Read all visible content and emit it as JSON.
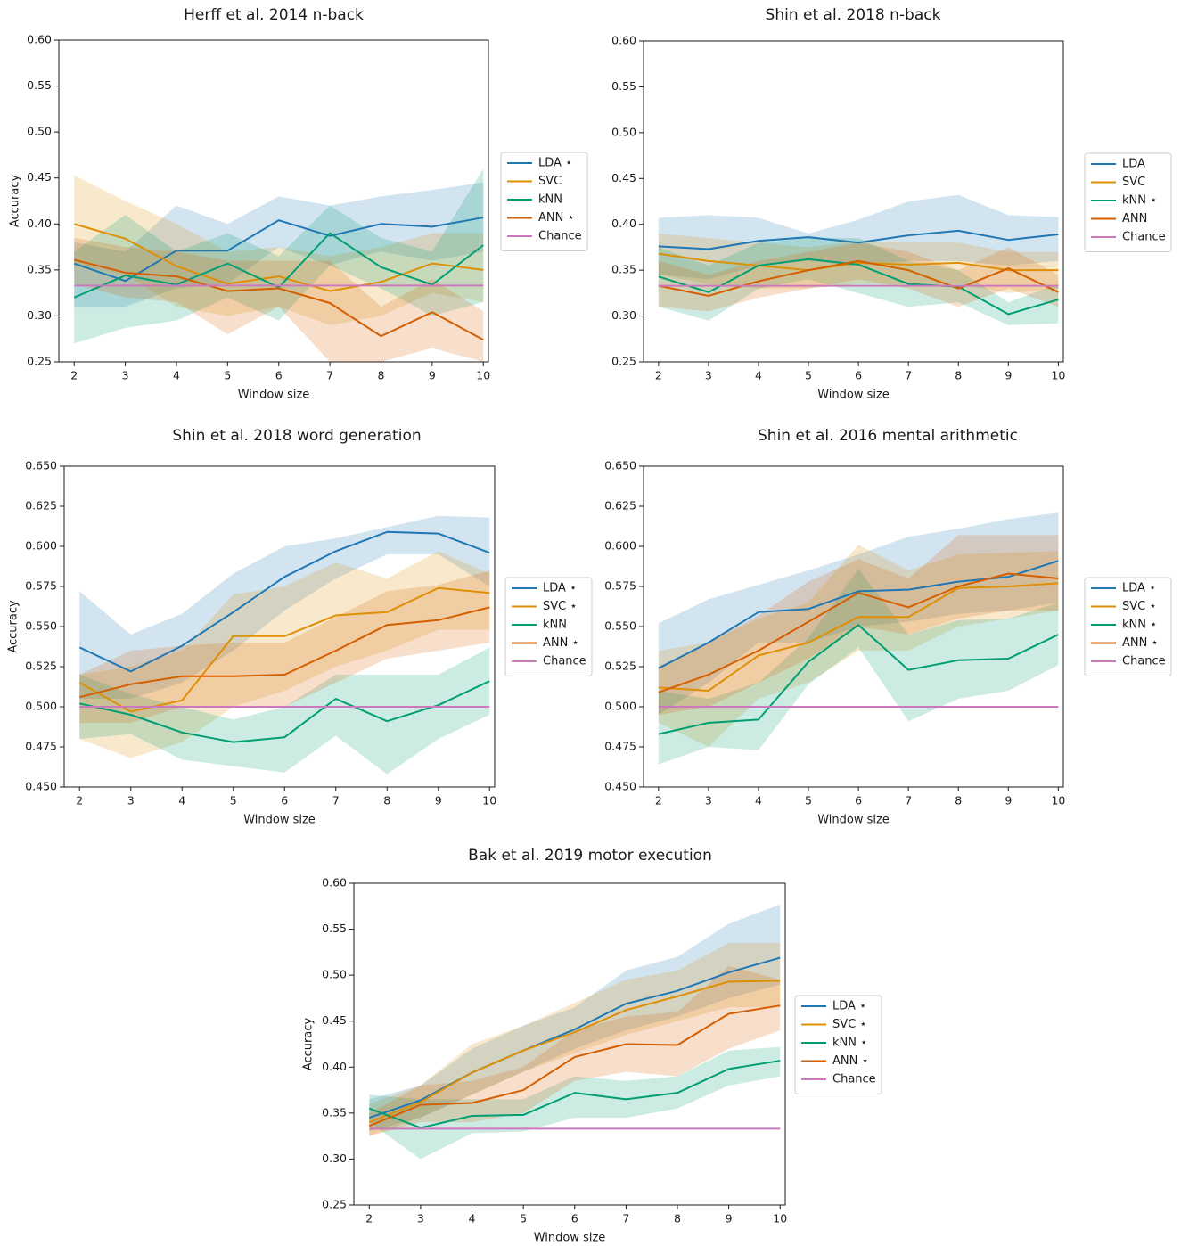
{
  "colors": {
    "LDA": "#1f77b4",
    "SVC": "#de8f05",
    "kNN": "#029e73",
    "ANN": "#d55e00",
    "Chance": "#cc78bc"
  },
  "chart_data": [
    {
      "type": "line",
      "title": "Herff et al. 2014 n-back",
      "xlabel": "Window size",
      "ylabel": "Accuracy",
      "x": [
        2,
        3,
        4,
        5,
        6,
        7,
        8,
        9,
        10
      ],
      "xticks": [
        "2",
        "3",
        "4",
        "5",
        "6",
        "7",
        "8",
        "9",
        "10"
      ],
      "ylim": [
        0.25,
        0.6
      ],
      "yticks": [
        "0.25",
        "0.30",
        "0.35",
        "0.40",
        "0.45",
        "0.50",
        "0.55",
        "0.60"
      ],
      "legend_position": "right",
      "series": [
        {
          "name": "LDA",
          "legend_label": "LDA  ⋆",
          "values": [
            0.357,
            0.338,
            0.371,
            0.371,
            0.404,
            0.387,
            0.4,
            0.397,
            0.407
          ],
          "lower": [
            0.31,
            0.31,
            0.33,
            0.335,
            0.375,
            0.355,
            0.37,
            0.36,
            0.37
          ],
          "upper": [
            0.38,
            0.37,
            0.42,
            0.4,
            0.43,
            0.42,
            0.43,
            0.437,
            0.445
          ]
        },
        {
          "name": "SVC",
          "legend_label": "SVC",
          "values": [
            0.4,
            0.384,
            0.354,
            0.335,
            0.343,
            0.327,
            0.337,
            0.357,
            0.35
          ],
          "lower": [
            0.355,
            0.345,
            0.31,
            0.3,
            0.31,
            0.29,
            0.3,
            0.325,
            0.315
          ],
          "upper": [
            0.453,
            0.425,
            0.4,
            0.37,
            0.375,
            0.365,
            0.375,
            0.39,
            0.39
          ]
        },
        {
          "name": "kNN",
          "legend_label": "kNN",
          "values": [
            0.32,
            0.344,
            0.334,
            0.357,
            0.331,
            0.39,
            0.353,
            0.334,
            0.377
          ],
          "lower": [
            0.27,
            0.287,
            0.295,
            0.32,
            0.295,
            0.355,
            0.33,
            0.3,
            0.315
          ],
          "upper": [
            0.37,
            0.41,
            0.37,
            0.39,
            0.365,
            0.42,
            0.385,
            0.37,
            0.46
          ]
        },
        {
          "name": "ANN",
          "legend_label": "ANN  ⋆",
          "values": [
            0.361,
            0.347,
            0.343,
            0.327,
            0.33,
            0.314,
            0.278,
            0.304,
            0.274
          ],
          "lower": [
            0.335,
            0.32,
            0.315,
            0.28,
            0.31,
            0.25,
            0.25,
            0.265,
            0.25
          ],
          "upper": [
            0.385,
            0.375,
            0.37,
            0.36,
            0.36,
            0.36,
            0.31,
            0.34,
            0.305
          ]
        },
        {
          "name": "Chance",
          "legend_label": "Chance",
          "values": [
            0.333,
            0.333,
            0.333,
            0.333,
            0.333,
            0.333,
            0.333,
            0.333,
            0.333
          ]
        }
      ]
    },
    {
      "type": "line",
      "title": "Shin et al. 2018 n-back",
      "xlabel": "Window size",
      "ylabel": "",
      "x": [
        2,
        3,
        4,
        5,
        6,
        7,
        8,
        9,
        10
      ],
      "xticks": [
        "2",
        "3",
        "4",
        "5",
        "6",
        "7",
        "8",
        "9",
        "10"
      ],
      "ylim": [
        0.25,
        0.6
      ],
      "yticks": [
        "0.25",
        "0.30",
        "0.35",
        "0.40",
        "0.45",
        "0.50",
        "0.55",
        "0.60"
      ],
      "legend_position": "right",
      "series": [
        {
          "name": "LDA",
          "legend_label": "LDA",
          "values": [
            0.376,
            0.373,
            0.382,
            0.386,
            0.38,
            0.388,
            0.393,
            0.383,
            0.389
          ],
          "lower": [
            0.345,
            0.34,
            0.355,
            0.36,
            0.355,
            0.36,
            0.36,
            0.355,
            0.36
          ],
          "upper": [
            0.407,
            0.41,
            0.407,
            0.39,
            0.405,
            0.425,
            0.432,
            0.41,
            0.408
          ]
        },
        {
          "name": "SVC",
          "legend_label": "SVC",
          "values": [
            0.368,
            0.36,
            0.355,
            0.35,
            0.358,
            0.356,
            0.358,
            0.35,
            0.35
          ],
          "lower": [
            0.345,
            0.335,
            0.33,
            0.33,
            0.335,
            0.335,
            0.335,
            0.325,
            0.33
          ],
          "upper": [
            0.39,
            0.385,
            0.38,
            0.375,
            0.382,
            0.38,
            0.38,
            0.37,
            0.37
          ]
        },
        {
          "name": "kNN",
          "legend_label": "kNN  ⋆",
          "values": [
            0.343,
            0.326,
            0.355,
            0.362,
            0.356,
            0.335,
            0.332,
            0.302,
            0.318
          ],
          "lower": [
            0.31,
            0.295,
            0.33,
            0.34,
            0.325,
            0.31,
            0.315,
            0.29,
            0.292
          ],
          "upper": [
            0.375,
            0.355,
            0.38,
            0.385,
            0.385,
            0.36,
            0.35,
            0.315,
            0.335
          ]
        },
        {
          "name": "ANN",
          "legend_label": "ANN",
          "values": [
            0.333,
            0.322,
            0.338,
            0.35,
            0.36,
            0.35,
            0.33,
            0.352,
            0.326
          ],
          "lower": [
            0.31,
            0.305,
            0.32,
            0.33,
            0.34,
            0.33,
            0.31,
            0.33,
            0.31
          ],
          "upper": [
            0.36,
            0.345,
            0.36,
            0.37,
            0.38,
            0.37,
            0.35,
            0.375,
            0.345
          ]
        },
        {
          "name": "Chance",
          "legend_label": "Chance",
          "values": [
            0.333,
            0.333,
            0.333,
            0.333,
            0.333,
            0.333,
            0.333,
            0.333,
            0.333
          ]
        }
      ]
    },
    {
      "type": "line",
      "title": "Shin et al. 2018 word generation",
      "xlabel": "Window size",
      "ylabel": "Accuracy",
      "x": [
        2,
        3,
        4,
        5,
        6,
        7,
        8,
        9,
        10
      ],
      "xticks": [
        "2",
        "3",
        "4",
        "5",
        "6",
        "7",
        "8",
        "9",
        "10"
      ],
      "ylim": [
        0.45,
        0.65
      ],
      "yticks": [
        "0.450",
        "0.475",
        "0.500",
        "0.525",
        "0.550",
        "0.575",
        "0.600",
        "0.625",
        "0.650"
      ],
      "legend_position": "right",
      "series": [
        {
          "name": "LDA",
          "legend_label": "LDA  ⋆",
          "values": [
            0.537,
            0.522,
            0.538,
            0.559,
            0.581,
            0.597,
            0.609,
            0.608,
            0.596
          ],
          "lower": [
            0.505,
            0.505,
            0.515,
            0.535,
            0.56,
            0.58,
            0.595,
            0.595,
            0.575
          ],
          "upper": [
            0.572,
            0.545,
            0.558,
            0.583,
            0.6,
            0.605,
            0.612,
            0.619,
            0.618
          ]
        },
        {
          "name": "SVC",
          "legend_label": "SVC  ⋆",
          "values": [
            0.515,
            0.497,
            0.504,
            0.544,
            0.544,
            0.557,
            0.559,
            0.574,
            0.571
          ],
          "lower": [
            0.48,
            0.468,
            0.478,
            0.5,
            0.51,
            0.525,
            0.535,
            0.548,
            0.548
          ],
          "upper": [
            0.52,
            0.525,
            0.535,
            0.57,
            0.575,
            0.59,
            0.58,
            0.597,
            0.583
          ]
        },
        {
          "name": "kNN",
          "legend_label": "kNN",
          "values": [
            0.502,
            0.495,
            0.484,
            0.478,
            0.481,
            0.505,
            0.491,
            0.501,
            0.516
          ],
          "lower": [
            0.48,
            0.483,
            0.467,
            0.463,
            0.459,
            0.482,
            0.458,
            0.48,
            0.495
          ],
          "upper": [
            0.52,
            0.508,
            0.5,
            0.492,
            0.5,
            0.52,
            0.52,
            0.52,
            0.537
          ]
        },
        {
          "name": "ANN",
          "legend_label": "ANN  ⋆",
          "values": [
            0.506,
            0.514,
            0.519,
            0.519,
            0.52,
            0.535,
            0.551,
            0.554,
            0.562
          ],
          "lower": [
            0.49,
            0.49,
            0.5,
            0.5,
            0.5,
            0.515,
            0.53,
            0.535,
            0.54
          ],
          "upper": [
            0.52,
            0.535,
            0.538,
            0.54,
            0.54,
            0.556,
            0.572,
            0.576,
            0.585
          ]
        },
        {
          "name": "Chance",
          "legend_label": "Chance",
          "values": [
            0.5,
            0.5,
            0.5,
            0.5,
            0.5,
            0.5,
            0.5,
            0.5,
            0.5
          ]
        }
      ]
    },
    {
      "type": "line",
      "title": "Shin et al. 2016 mental arithmetic",
      "xlabel": "Window size",
      "ylabel": "",
      "x": [
        2,
        3,
        4,
        5,
        6,
        7,
        8,
        9,
        10
      ],
      "xticks": [
        "2",
        "3",
        "4",
        "5",
        "6",
        "7",
        "8",
        "9",
        "10"
      ],
      "ylim": [
        0.45,
        0.65
      ],
      "yticks": [
        "0.450",
        "0.475",
        "0.500",
        "0.525",
        "0.550",
        "0.575",
        "0.600",
        "0.625",
        "0.650"
      ],
      "legend_position": "right",
      "series": [
        {
          "name": "LDA",
          "legend_label": "LDA  ⋆",
          "values": [
            0.524,
            0.54,
            0.559,
            0.561,
            0.572,
            0.573,
            0.578,
            0.581,
            0.591
          ],
          "lower": [
            0.495,
            0.515,
            0.54,
            0.54,
            0.55,
            0.553,
            0.558,
            0.56,
            0.565
          ],
          "upper": [
            0.552,
            0.567,
            0.576,
            0.585,
            0.595,
            0.606,
            0.611,
            0.617,
            0.621
          ]
        },
        {
          "name": "SVC",
          "legend_label": "SVC  ⋆",
          "values": [
            0.512,
            0.51,
            0.532,
            0.54,
            0.556,
            0.556,
            0.574,
            0.575,
            0.577
          ],
          "lower": [
            0.49,
            0.475,
            0.505,
            0.515,
            0.535,
            0.535,
            0.55,
            0.555,
            0.56
          ],
          "upper": [
            0.535,
            0.54,
            0.555,
            0.565,
            0.601,
            0.585,
            0.595,
            0.596,
            0.597
          ]
        },
        {
          "name": "kNN",
          "legend_label": "kNN  ⋆",
          "values": [
            0.483,
            0.49,
            0.492,
            0.528,
            0.551,
            0.523,
            0.529,
            0.53,
            0.545
          ],
          "lower": [
            0.464,
            0.475,
            0.473,
            0.514,
            0.537,
            0.491,
            0.505,
            0.51,
            0.526
          ],
          "upper": [
            0.51,
            0.505,
            0.515,
            0.543,
            0.586,
            0.545,
            0.554,
            0.555,
            0.565
          ]
        },
        {
          "name": "ANN",
          "legend_label": "ANN  ⋆",
          "values": [
            0.509,
            0.52,
            0.535,
            0.553,
            0.571,
            0.562,
            0.575,
            0.583,
            0.58
          ],
          "lower": [
            0.495,
            0.5,
            0.515,
            0.53,
            0.55,
            0.545,
            0.555,
            0.56,
            0.56
          ],
          "upper": [
            0.525,
            0.54,
            0.557,
            0.578,
            0.592,
            0.58,
            0.607,
            0.607,
            0.607
          ]
        },
        {
          "name": "Chance",
          "legend_label": "Chance",
          "values": [
            0.5,
            0.5,
            0.5,
            0.5,
            0.5,
            0.5,
            0.5,
            0.5,
            0.5
          ]
        }
      ]
    },
    {
      "type": "line",
      "title": "Bak et al. 2019 motor execution",
      "xlabel": "Window size",
      "ylabel": "Accuracy",
      "x": [
        2,
        3,
        4,
        5,
        6,
        7,
        8,
        9,
        10
      ],
      "xticks": [
        "2",
        "3",
        "4",
        "5",
        "6",
        "7",
        "8",
        "9",
        "10"
      ],
      "ylim": [
        0.25,
        0.6
      ],
      "yticks": [
        "0.25",
        "0.30",
        "0.35",
        "0.40",
        "0.45",
        "0.50",
        "0.55",
        "0.60"
      ],
      "legend_position": "right",
      "series": [
        {
          "name": "LDA",
          "legend_label": "LDA  ⋆",
          "values": [
            0.345,
            0.364,
            0.394,
            0.418,
            0.441,
            0.469,
            0.483,
            0.503,
            0.519
          ],
          "lower": [
            0.33,
            0.345,
            0.37,
            0.395,
            0.42,
            0.44,
            0.455,
            0.475,
            0.49
          ],
          "upper": [
            0.365,
            0.38,
            0.42,
            0.445,
            0.465,
            0.505,
            0.52,
            0.556,
            0.577
          ]
        },
        {
          "name": "SVC",
          "legend_label": "SVC  ⋆",
          "values": [
            0.34,
            0.362,
            0.394,
            0.418,
            0.438,
            0.462,
            0.477,
            0.493,
            0.494
          ],
          "lower": [
            0.325,
            0.345,
            0.37,
            0.395,
            0.415,
            0.435,
            0.45,
            0.465,
            0.465
          ],
          "upper": [
            0.36,
            0.38,
            0.425,
            0.445,
            0.47,
            0.495,
            0.505,
            0.535,
            0.535
          ]
        },
        {
          "name": "kNN",
          "legend_label": "kNN  ⋆",
          "values": [
            0.355,
            0.334,
            0.347,
            0.348,
            0.372,
            0.365,
            0.372,
            0.398,
            0.407
          ],
          "lower": [
            0.34,
            0.3,
            0.328,
            0.33,
            0.345,
            0.345,
            0.355,
            0.38,
            0.39
          ],
          "upper": [
            0.37,
            0.365,
            0.365,
            0.365,
            0.39,
            0.385,
            0.39,
            0.418,
            0.422
          ]
        },
        {
          "name": "ANN",
          "legend_label": "ANN  ⋆",
          "values": [
            0.336,
            0.359,
            0.361,
            0.375,
            0.411,
            0.425,
            0.424,
            0.458,
            0.467
          ],
          "lower": [
            0.325,
            0.34,
            0.34,
            0.35,
            0.385,
            0.395,
            0.39,
            0.42,
            0.44
          ],
          "upper": [
            0.35,
            0.38,
            0.385,
            0.4,
            0.44,
            0.455,
            0.46,
            0.51,
            0.495
          ]
        },
        {
          "name": "Chance",
          "legend_label": "Chance",
          "values": [
            0.333,
            0.333,
            0.333,
            0.333,
            0.333,
            0.333,
            0.333,
            0.333,
            0.333
          ]
        }
      ]
    }
  ]
}
